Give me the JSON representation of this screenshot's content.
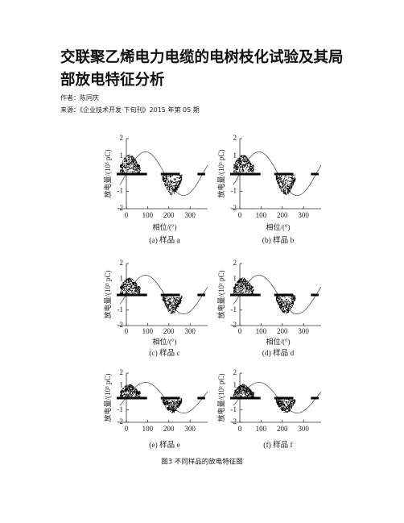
{
  "header": {
    "title": "交联聚乙烯电力电缆的电树枝化试验及其局部放电特征分析",
    "author": "作者：陈同庆",
    "source": "来源：《企业技术开发·下旬刊》2015 年第 05 期"
  },
  "figure": {
    "caption": "图3  不同样品的放电特征图",
    "ylim": [
      -2,
      2
    ],
    "yticks": [
      -2,
      -1,
      0,
      1,
      2
    ],
    "xlim": [
      0,
      360
    ],
    "xticks": [
      0,
      100,
      200,
      300
    ],
    "panels": [
      {
        "caption": "(a)  样品  a",
        "y_label": "放电量/(10³ pC)",
        "x_label": "相位/(°)"
      },
      {
        "caption": "(b)  样品  b",
        "y_label": "放电量/(10³ pC)",
        "x_label": "相位/(°)"
      },
      {
        "caption": "(c)  样品  c",
        "y_label": "放电量/(10³ pC)",
        "x_label": "相位/(°)"
      },
      {
        "caption": "(d)  样品  d",
        "y_label": "放电量/(10³ pC)",
        "x_label": "相位/(°)"
      },
      {
        "caption": "(e)  样品  e",
        "y_label": "放电量/(10³ pC)"
      },
      {
        "caption": "(f)  样品  f",
        "y_label": "放电量/(10³ pC)"
      }
    ]
  }
}
